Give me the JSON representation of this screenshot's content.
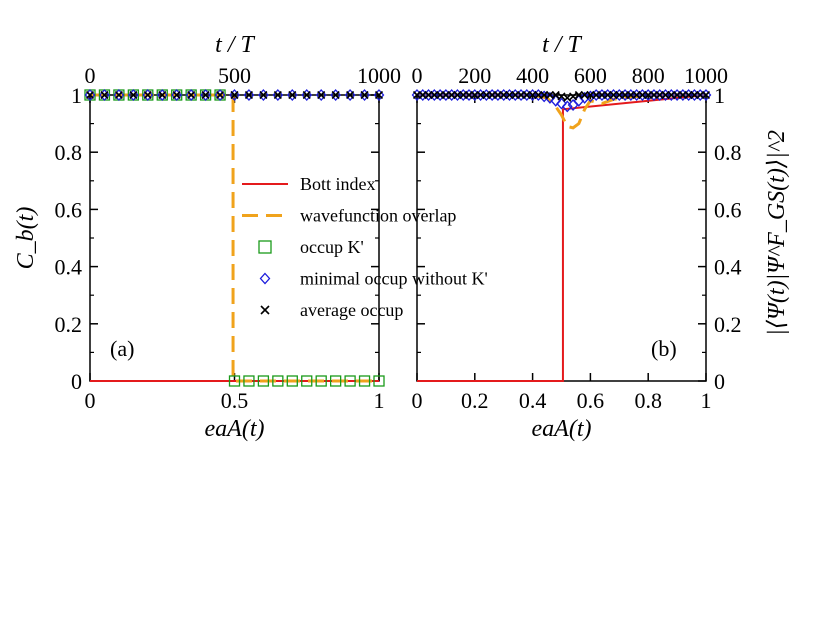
{
  "chart_data": [
    {
      "panel": "a",
      "type": "line",
      "panel_label": "(a)",
      "xlabel": "eaA(t)",
      "x2label": "t / T",
      "ylabel": "C_b(t)",
      "xlim": [
        0,
        1
      ],
      "x2lim": [
        0,
        1000
      ],
      "ylim": [
        0,
        1
      ],
      "xticks": [
        0,
        0.5,
        1
      ],
      "xtick_labels": [
        "0",
        "0.5",
        "1"
      ],
      "x2ticks": [
        0,
        500,
        1000
      ],
      "x2tick_labels": [
        "0",
        "500",
        "1000"
      ],
      "yticks": [
        0,
        0.2,
        0.4,
        0.6,
        0.8,
        1
      ],
      "ytick_labels": [
        "0",
        "0.2",
        "0.4",
        "0.6",
        "0.8",
        "1"
      ],
      "series": [
        {
          "name": "Bott index",
          "style": "line",
          "color": "#e41a1c",
          "x": [
            0,
            0.495,
            0.495,
            1
          ],
          "y": [
            0,
            0,
            0,
            0
          ]
        },
        {
          "name": "wavefunction overlap",
          "style": "dashed",
          "color": "#f0a31c",
          "x": [
            0,
            0.495,
            0.495,
            1
          ],
          "y": [
            1,
            1,
            0,
            0
          ]
        },
        {
          "name": "occup K'",
          "style": "square",
          "color": "#1a9a1a",
          "x": [
            0,
            0.05,
            0.1,
            0.15,
            0.2,
            0.25,
            0.3,
            0.35,
            0.4,
            0.45,
            0.5,
            0.55,
            0.6,
            0.65,
            0.7,
            0.75,
            0.8,
            0.85,
            0.9,
            0.95,
            1
          ],
          "y": [
            1,
            1,
            1,
            1,
            1,
            1,
            1,
            1,
            1,
            1,
            0,
            0,
            0,
            0,
            0,
            0,
            0,
            0,
            0,
            0,
            0
          ]
        },
        {
          "name": "minimal occup without K'",
          "style": "diamond",
          "color": "#1c1cdc",
          "x": [
            0,
            0.05,
            0.1,
            0.15,
            0.2,
            0.25,
            0.3,
            0.35,
            0.4,
            0.45,
            0.5,
            0.55,
            0.6,
            0.65,
            0.7,
            0.75,
            0.8,
            0.85,
            0.9,
            0.95,
            1
          ],
          "y": [
            1,
            1,
            1,
            1,
            1,
            1,
            1,
            1,
            1,
            1,
            1,
            1,
            1,
            1,
            1,
            1,
            1,
            1,
            1,
            1,
            1
          ]
        },
        {
          "name": "average occup",
          "style": "x",
          "color": "#000000",
          "x": [
            0,
            0.05,
            0.1,
            0.15,
            0.2,
            0.25,
            0.3,
            0.35,
            0.4,
            0.45,
            0.5,
            0.55,
            0.6,
            0.65,
            0.7,
            0.75,
            0.8,
            0.85,
            0.9,
            0.95,
            1
          ],
          "y": [
            1,
            1,
            1,
            1,
            1,
            1,
            1,
            1,
            1,
            1,
            1,
            1,
            1,
            1,
            1,
            1,
            1,
            1,
            1,
            1,
            1
          ]
        }
      ],
      "legend": {
        "placement": "center",
        "entries": [
          "Bott index",
          "wavefunction overlap",
          "occup K'",
          "minimal occup without K'",
          "average occup"
        ]
      }
    },
    {
      "panel": "b",
      "type": "line",
      "panel_label": "(b)",
      "xlabel": "eaA(t)",
      "x2label": "t / T",
      "ylabel": "|⟨Ψ(t)|Ψ^F_GS(t)⟩|^2",
      "xlim": [
        0,
        1
      ],
      "x2lim": [
        0,
        1000
      ],
      "ylim": [
        0,
        1
      ],
      "xticks": [
        0,
        0.2,
        0.4,
        0.6,
        0.8,
        1
      ],
      "xtick_labels": [
        "0",
        "0.2",
        "0.4",
        "0.6",
        "0.8",
        "1"
      ],
      "x2ticks": [
        0,
        200,
        400,
        600,
        800,
        1000
      ],
      "x2tick_labels": [
        "0",
        "200",
        "400",
        "600",
        "800",
        "1000"
      ],
      "yticks": [
        0,
        0.2,
        0.4,
        0.6,
        0.8,
        1
      ],
      "ytick_labels": [
        "0",
        "0.2",
        "0.4",
        "0.6",
        "0.8",
        "1"
      ],
      "series": [
        {
          "name": "Bott index",
          "style": "line",
          "color": "#e41a1c",
          "x": [
            0,
            0.5,
            0.5,
            0.505,
            0.505,
            1
          ],
          "y": [
            0,
            0,
            0,
            0,
            0.95,
            1
          ]
        },
        {
          "name": "wavefunction overlap",
          "style": "dashed",
          "color": "#f0a31c",
          "x": [
            0,
            0.4,
            0.45,
            0.48,
            0.5,
            0.52,
            0.54,
            0.56,
            0.58,
            0.6,
            0.64,
            0.68,
            0.72,
            0.8,
            1
          ],
          "y": [
            1,
            1,
            0.99,
            0.96,
            0.93,
            0.89,
            0.885,
            0.9,
            0.95,
            0.98,
            0.97,
            0.985,
            0.99,
            1,
            1
          ]
        },
        {
          "name": "minimal occup without K'",
          "style": "diamond",
          "color": "#1c1cdc",
          "x": [
            0,
            0.02,
            0.04,
            0.06,
            0.08,
            0.1,
            0.12,
            0.14,
            0.16,
            0.18,
            0.2,
            0.22,
            0.24,
            0.26,
            0.28,
            0.3,
            0.32,
            0.34,
            0.36,
            0.38,
            0.4,
            0.42,
            0.44,
            0.46,
            0.48,
            0.5,
            0.52,
            0.54,
            0.56,
            0.58,
            0.6,
            0.62,
            0.64,
            0.66,
            0.68,
            0.7,
            0.72,
            0.74,
            0.76,
            0.78,
            0.8,
            0.82,
            0.84,
            0.86,
            0.88,
            0.9,
            0.92,
            0.94,
            0.96,
            0.98,
            1
          ],
          "y": [
            1,
            1,
            1,
            1,
            1,
            1,
            1,
            1,
            1,
            1,
            1,
            1,
            1,
            1,
            1,
            1,
            1,
            1,
            1,
            1,
            1,
            1,
            0.995,
            0.99,
            0.98,
            0.97,
            0.96,
            0.965,
            0.98,
            0.99,
            0.995,
            1,
            1,
            1,
            1,
            1,
            1,
            1,
            1,
            1,
            1,
            1,
            1,
            1,
            1,
            1,
            1,
            1,
            1,
            1,
            1
          ]
        },
        {
          "name": "average occup",
          "style": "x",
          "color": "#000000",
          "x": [
            0,
            0.02,
            0.04,
            0.06,
            0.08,
            0.1,
            0.12,
            0.14,
            0.16,
            0.18,
            0.2,
            0.22,
            0.24,
            0.26,
            0.28,
            0.3,
            0.32,
            0.34,
            0.36,
            0.38,
            0.4,
            0.42,
            0.44,
            0.46,
            0.48,
            0.5,
            0.52,
            0.54,
            0.56,
            0.58,
            0.6,
            0.62,
            0.64,
            0.66,
            0.68,
            0.7,
            0.72,
            0.74,
            0.76,
            0.78,
            0.8,
            0.82,
            0.84,
            0.86,
            0.88,
            0.9,
            0.92,
            0.94,
            0.96,
            0.98,
            1
          ],
          "y": [
            1,
            1,
            1,
            1,
            1,
            1,
            1,
            1,
            1,
            1,
            1,
            1,
            1,
            1,
            1,
            1,
            1,
            1,
            1,
            1,
            1,
            1,
            1,
            1,
            1,
            0.995,
            0.99,
            0.995,
            1,
            1,
            1,
            1,
            1,
            1,
            1,
            1,
            1,
            1,
            1,
            1,
            1,
            1,
            1,
            1,
            1,
            1,
            1,
            1,
            1,
            1,
            1
          ]
        }
      ]
    }
  ]
}
